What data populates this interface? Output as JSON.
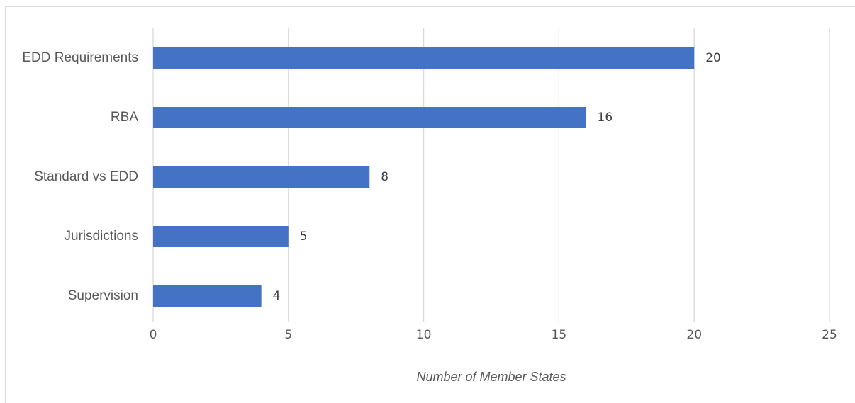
{
  "chart_data": {
    "type": "bar",
    "orientation": "horizontal",
    "categories": [
      "EDD Requirements",
      "RBA",
      "Standard vs EDD",
      "Jurisdictions",
      "Supervision"
    ],
    "values": [
      20,
      16,
      8,
      5,
      4
    ],
    "xlabel": "Number of Member States",
    "ylabel": "",
    "title": "",
    "xlim": [
      0,
      25
    ],
    "xticks": [
      0,
      5,
      10,
      15,
      20,
      25
    ],
    "grid": true,
    "legend": "none",
    "bar_color": "#4472c4",
    "grid_color": "#d9d9d9"
  }
}
